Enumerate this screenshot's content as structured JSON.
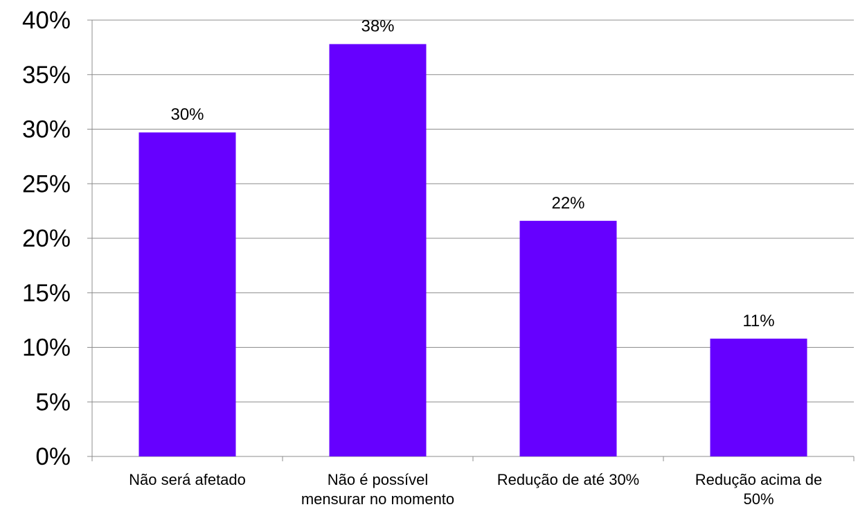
{
  "chart_data": {
    "type": "bar",
    "categories": [
      [
        "Não será afetado"
      ],
      [
        "Não é possível",
        "mensurar no momento"
      ],
      [
        "Redução de até 30%"
      ],
      [
        "Redução acima de",
        "50%"
      ]
    ],
    "values": [
      29.7,
      37.8,
      21.6,
      10.8
    ],
    "data_labels": [
      "30%",
      "38%",
      "22%",
      "11%"
    ],
    "ylim": [
      0,
      40
    ],
    "yticks": [
      0,
      5,
      10,
      15,
      20,
      25,
      30,
      35,
      40
    ],
    "ytick_labels": [
      "0%",
      "5%",
      "10%",
      "15%",
      "20%",
      "25%",
      "30%",
      "35%",
      "40%"
    ],
    "grid": true,
    "legend": "none",
    "bar_color": "#6600FF",
    "grid_color": "#8c8c8c",
    "title": "",
    "xlabel": "",
    "ylabel": ""
  }
}
